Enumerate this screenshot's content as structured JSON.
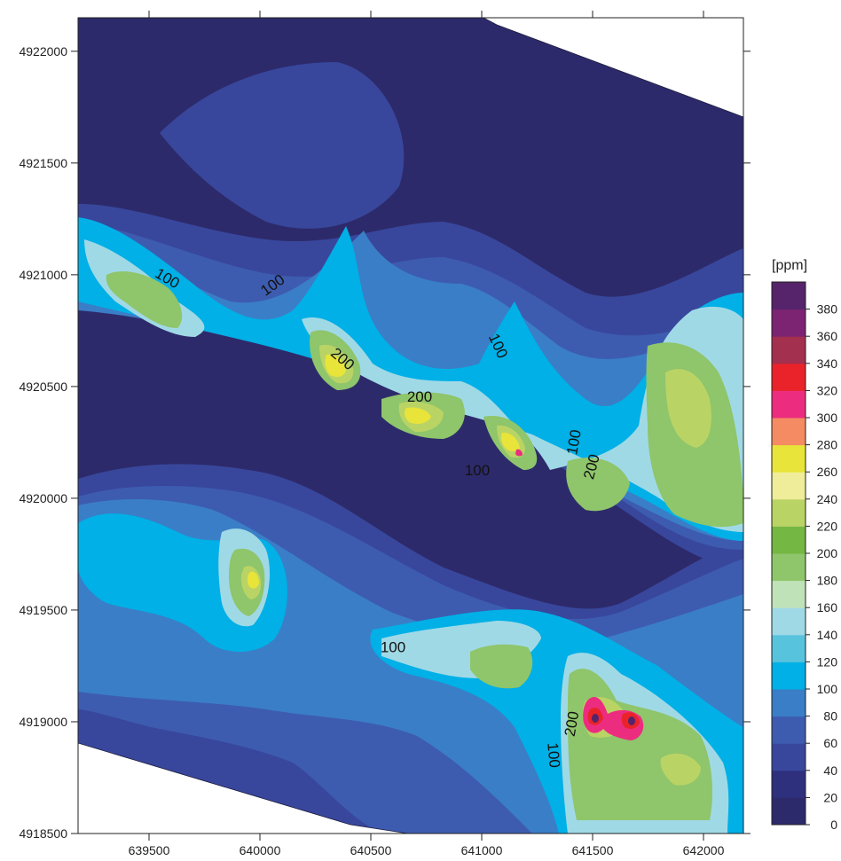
{
  "chart_data": {
    "type": "heatmap",
    "subtype": "filled-contour-map",
    "title": "",
    "xlabel": "",
    "ylabel": "",
    "xlim": [
      639180,
      642180
    ],
    "ylim": [
      4918500,
      4922150
    ],
    "x_ticks": [
      639500,
      640000,
      640500,
      641000,
      641500,
      642000
    ],
    "y_ticks": [
      4918500,
      4919000,
      4919500,
      4920000,
      4920500,
      4921000,
      4921500,
      4922000
    ],
    "x_tick_labels": [
      "639500",
      "640000",
      "640500",
      "641000",
      "641500",
      "642000"
    ],
    "y_tick_labels": [
      "4918500",
      "4919000",
      "4919500",
      "4920000",
      "4920500",
      "4921000",
      "4921500",
      "4922000"
    ],
    "grid": false,
    "colorbar": {
      "unit_label": "[ppm]",
      "position": "right",
      "levels": [
        0,
        20,
        40,
        60,
        80,
        100,
        120,
        140,
        160,
        180,
        200,
        220,
        240,
        260,
        280,
        300,
        320,
        340,
        360,
        380,
        400
      ],
      "tick_labels": [
        "0",
        "20",
        "40",
        "60",
        "80",
        "100",
        "120",
        "140",
        "160",
        "180",
        "200",
        "220",
        "240",
        "260",
        "280",
        "300",
        "320",
        "340",
        "360",
        "380"
      ],
      "colors": [
        "#2d2a6b",
        "#2e2f7d",
        "#38479c",
        "#3d5cb0",
        "#3a7ec7",
        "#00b0e6",
        "#58c3dd",
        "#a0d9e6",
        "#c0e2b8",
        "#8fc56b",
        "#74b743",
        "#b9d465",
        "#efed9a",
        "#e8e43a",
        "#f48b62",
        "#ec2d7f",
        "#ea232a",
        "#a3304f",
        "#7c2472",
        "#55246a"
      ]
    },
    "no_data_color": "#ffffff",
    "contour_labels": [
      {
        "text": "100",
        "x": 639580,
        "y": 4920980,
        "angle": 30
      },
      {
        "text": "100",
        "x": 640060,
        "y": 4920950,
        "angle": -35
      },
      {
        "text": "200",
        "x": 640370,
        "y": 4920620,
        "angle": 40
      },
      {
        "text": "200",
        "x": 640720,
        "y": 4920450,
        "angle": 0
      },
      {
        "text": "100",
        "x": 640980,
        "y": 4920120,
        "angle": 0
      },
      {
        "text": "100",
        "x": 641070,
        "y": 4920680,
        "angle": 65
      },
      {
        "text": "100",
        "x": 641420,
        "y": 4920250,
        "angle": -80
      },
      {
        "text": "200",
        "x": 641500,
        "y": 4920140,
        "angle": -75
      },
      {
        "text": "100",
        "x": 640600,
        "y": 4919330,
        "angle": 0
      },
      {
        "text": "200",
        "x": 641410,
        "y": 4918990,
        "angle": -80
      },
      {
        "text": "100",
        "x": 641320,
        "y": 4918850,
        "angle": 85
      }
    ],
    "hotspots": [
      {
        "x": 639570,
        "y": 4920900,
        "peak_ppm": 200
      },
      {
        "x": 640340,
        "y": 4920600,
        "peak_ppm": 240
      },
      {
        "x": 640720,
        "y": 4920390,
        "peak_ppm": 260
      },
      {
        "x": 641170,
        "y": 4920210,
        "peak_ppm": 300
      },
      {
        "x": 641100,
        "y": 4920680,
        "peak_ppm": 200
      },
      {
        "x": 641530,
        "y": 4920080,
        "peak_ppm": 240
      },
      {
        "x": 641830,
        "y": 4920260,
        "peak_ppm": 220
      },
      {
        "x": 641900,
        "y": 4919910,
        "peak_ppm": 220
      },
      {
        "x": 640000,
        "y": 4919790,
        "peak_ppm": 260
      },
      {
        "x": 640000,
        "y": 4919510,
        "peak_ppm": 200
      },
      {
        "x": 641000,
        "y": 4919150,
        "peak_ppm": 200
      },
      {
        "x": 641210,
        "y": 4919290,
        "peak_ppm": 240
      },
      {
        "x": 641500,
        "y": 4919040,
        "peak_ppm": 360
      },
      {
        "x": 641700,
        "y": 4918990,
        "peak_ppm": 360
      },
      {
        "x": 641530,
        "y": 4918640,
        "peak_ppm": 220
      },
      {
        "x": 641850,
        "y": 4918720,
        "peak_ppm": 220
      }
    ]
  }
}
